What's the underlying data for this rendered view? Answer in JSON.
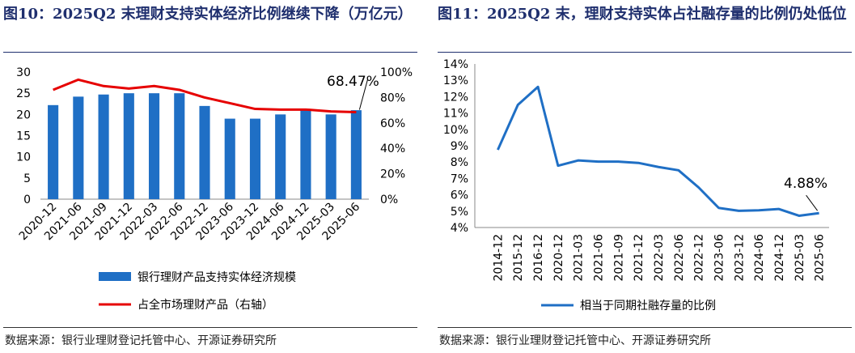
{
  "left_panel": {
    "title": "图10：2025Q2 末理财支持实体经济比例继续下降（万亿元）",
    "source": "数据来源：银行业理财登记托管中心、开源证券研究所",
    "chart_data": {
      "type": "bar+line",
      "categories": [
        "2020-12",
        "2021-06",
        "2021-09",
        "2021-12",
        "2022-03",
        "2022-06",
        "2022-12",
        "2023-06",
        "2023-12",
        "2024-06",
        "2024-12",
        "2025-03",
        "2025-06"
      ],
      "series": [
        {
          "name": "银行理财产品支持实体经济规模",
          "type": "bar",
          "axis": "left",
          "color": "#1f6fc5",
          "values": [
            22.2,
            24.2,
            24.7,
            25.0,
            25.0,
            25.0,
            22.0,
            19.0,
            19.0,
            20.0,
            21.0,
            20.0,
            21.0
          ]
        },
        {
          "name": "占全市场理财产品（右轴）",
          "type": "line",
          "axis": "right",
          "color": "#e60000",
          "values": [
            86.0,
            94.0,
            89.0,
            87.0,
            89.0,
            86.0,
            80.0,
            75.5,
            71.0,
            70.5,
            70.5,
            69.0,
            68.47
          ]
        }
      ],
      "y_left": {
        "min": 0,
        "max": 30,
        "ticks": [
          "0",
          "5",
          "10",
          "15",
          "20",
          "25",
          "30"
        ]
      },
      "y_right": {
        "min": 0,
        "max": 100,
        "ticks": [
          "0%",
          "20%",
          "40%",
          "60%",
          "80%",
          "100%"
        ]
      },
      "annotation": {
        "text": "68.47%",
        "index": 12,
        "series": 1
      },
      "legend_position": "bottom"
    }
  },
  "right_panel": {
    "title": "图11：2025Q2 末，理财支持实体占社融存量的比例仍处低位",
    "source": "数据来源：银行业理财登记托管中心、开源证券研究所",
    "chart_data": {
      "type": "line",
      "categories": [
        "2014-12",
        "2015-12",
        "2016-12",
        "2020-12",
        "2021-03",
        "2021-06",
        "2021-09",
        "2021-12",
        "2022-03",
        "2022-06",
        "2022-12",
        "2023-06",
        "2023-12",
        "2024-06",
        "2024-12",
        "2025-03",
        "2025-06"
      ],
      "series": [
        {
          "name": "相当于同期社融存量的比例",
          "color": "#1f6fc5",
          "values": [
            8.75,
            11.5,
            12.6,
            7.78,
            8.1,
            8.03,
            8.03,
            7.95,
            7.7,
            7.5,
            6.45,
            5.2,
            5.02,
            5.05,
            5.13,
            4.72,
            4.88
          ]
        }
      ],
      "y": {
        "min": 4,
        "max": 14,
        "ticks": [
          "4%",
          "5%",
          "6%",
          "7%",
          "8%",
          "9%",
          "10%",
          "11%",
          "12%",
          "13%",
          "14%"
        ]
      },
      "annotation": {
        "text": "4.88%",
        "index": 16
      },
      "legend_position": "bottom"
    }
  }
}
